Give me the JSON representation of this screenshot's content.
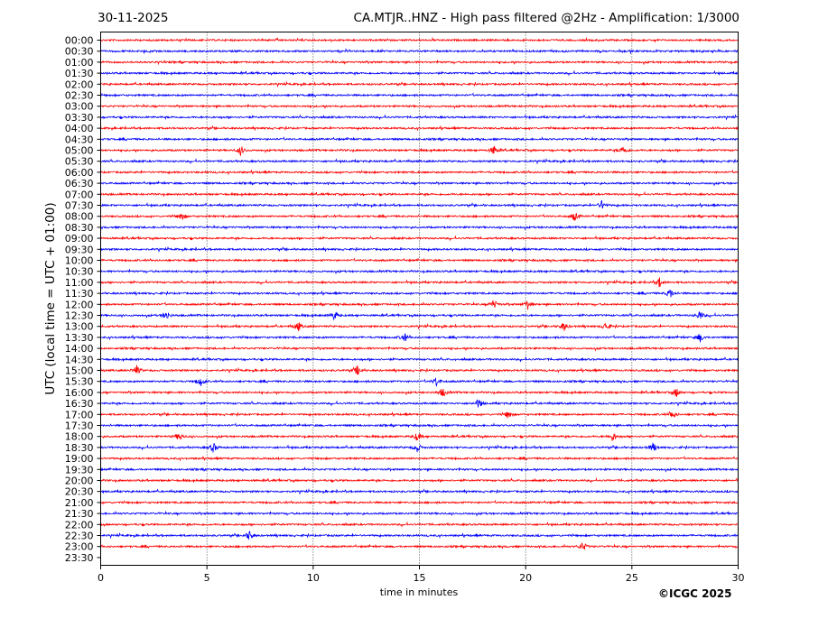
{
  "header": {
    "date": "30-11-2025",
    "title": "CA.MTJR..HNZ - High pass filtered @2Hz - Amplification: 1/3000"
  },
  "footer": {
    "copyright": "©ICGC 2025"
  },
  "chart_data": {
    "type": "line",
    "title": "CA.MTJR..HNZ - High pass filtered @2Hz - Amplification: 1/3000",
    "xlabel": "time in minutes",
    "ylabel": "UTC (local time = UTC + 01:00)",
    "xlim": [
      0,
      30
    ],
    "x_ticks": [
      0,
      5,
      10,
      15,
      20,
      25,
      30
    ],
    "grid": "vertical dotted lines every 5 minutes",
    "trace_colors": [
      "#ff0000",
      "#0000ff"
    ],
    "rows": [
      "00:00",
      "00:30",
      "01:00",
      "01:30",
      "02:00",
      "02:30",
      "03:00",
      "03:30",
      "04:00",
      "04:30",
      "05:00",
      "05:30",
      "06:00",
      "06:30",
      "07:00",
      "07:30",
      "08:00",
      "08:30",
      "09:00",
      "09:30",
      "10:00",
      "10:30",
      "11:00",
      "11:30",
      "12:00",
      "12:30",
      "13:00",
      "13:30",
      "14:00",
      "14:30",
      "15:00",
      "15:30",
      "16:00",
      "16:30",
      "17:00",
      "17:30",
      "18:00",
      "18:30",
      "19:00",
      "19:30",
      "20:00",
      "20:30",
      "21:00",
      "21:30",
      "22:00",
      "22:30",
      "23:00",
      "23:30"
    ],
    "drawn_rows": 47,
    "events": [
      {
        "row": "05:00",
        "minutes": [
          6.6,
          18.5,
          24.6
        ]
      },
      {
        "row": "07:30",
        "minutes": [
          23.6
        ]
      },
      {
        "row": "08:00",
        "minutes": [
          3.8,
          22.3
        ]
      },
      {
        "row": "11:00",
        "minutes": [
          26.3
        ]
      },
      {
        "row": "11:30",
        "minutes": [
          26.8
        ]
      },
      {
        "row": "12:00",
        "minutes": [
          18.5,
          20.1
        ]
      },
      {
        "row": "12:30",
        "minutes": [
          3.1,
          11.0,
          28.2
        ]
      },
      {
        "row": "13:00",
        "minutes": [
          9.3,
          21.8,
          23.8
        ]
      },
      {
        "row": "13:30",
        "minutes": [
          14.3,
          28.2
        ]
      },
      {
        "row": "15:00",
        "minutes": [
          1.7,
          12.1
        ]
      },
      {
        "row": "15:30",
        "minutes": [
          4.7,
          15.8
        ]
      },
      {
        "row": "16:00",
        "minutes": [
          16.1,
          27.1
        ]
      },
      {
        "row": "16:30",
        "minutes": [
          17.8
        ]
      },
      {
        "row": "17:00",
        "minutes": [
          19.2,
          26.9
        ]
      },
      {
        "row": "18:00",
        "minutes": [
          3.7,
          14.9,
          24.1
        ]
      },
      {
        "row": "18:30",
        "minutes": [
          5.3,
          14.9,
          26.0
        ]
      },
      {
        "row": "22:30",
        "minutes": [
          7.0
        ]
      },
      {
        "row": "23:00",
        "minutes": [
          22.7
        ]
      }
    ]
  }
}
